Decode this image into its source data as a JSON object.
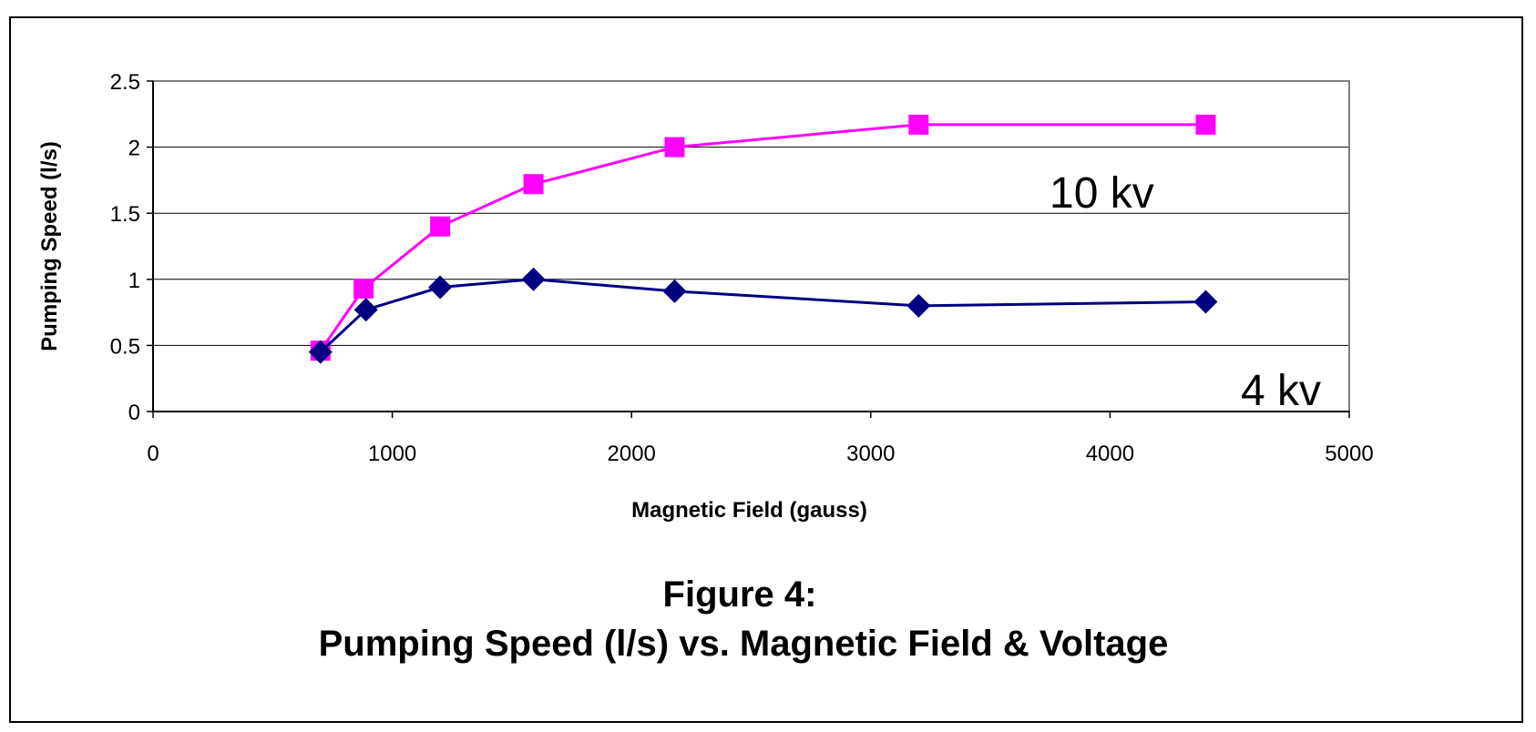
{
  "chart_data": {
    "type": "line",
    "xlabel": "Magnetic Field (gauss)",
    "ylabel": "Pumping Speed (l/s)",
    "xlim": [
      0,
      5000
    ],
    "ylim": [
      0,
      2.5
    ],
    "xticks": [
      "0",
      "1000",
      "2000",
      "3000",
      "4000",
      "5000"
    ],
    "yticks": [
      "0",
      "0.5",
      "1",
      "1.5",
      "2",
      "2.5"
    ],
    "grid": "horizontal",
    "series": [
      {
        "color": "#ff00ff",
        "marker": "square",
        "x": [
          700,
          880,
          1200,
          1590,
          2180,
          3200,
          4400
        ],
        "y": [
          0.46,
          0.93,
          1.4,
          1.72,
          2.0,
          2.17,
          2.17
        ]
      },
      {
        "color": "#000080",
        "marker": "diamond",
        "x": [
          700,
          890,
          1200,
          1590,
          2180,
          3200,
          4400
        ],
        "y": [
          0.45,
          0.77,
          0.94,
          1.0,
          0.91,
          0.8,
          0.83
        ]
      }
    ],
    "annotations": [
      "10 kv",
      "4 kv"
    ]
  },
  "caption": {
    "line1": "Figure 4:",
    "line2": "Pumping Speed (l/s) vs. Magnetic Field & Voltage"
  }
}
